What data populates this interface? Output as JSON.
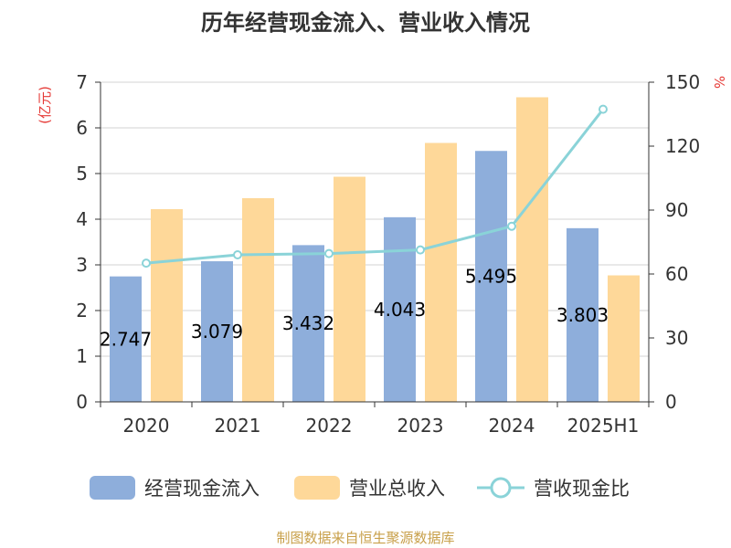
{
  "chart_data": {
    "type": "bar",
    "title": "历年经营现金流入、营业收入情况",
    "categories": [
      "2020",
      "2021",
      "2022",
      "2023",
      "2024",
      "2025H1"
    ],
    "left_unit": "(亿元)",
    "right_unit": "%",
    "ylim_left": [
      0,
      7
    ],
    "yticks_left": [
      "0",
      "1",
      "2",
      "3",
      "4",
      "5",
      "6",
      "7"
    ],
    "ylim_right": [
      0,
      150
    ],
    "yticks_right": [
      "0",
      "30",
      "60",
      "90",
      "120",
      "150"
    ],
    "series": [
      {
        "name": "经营现金流入",
        "type": "bar",
        "axis": "left",
        "color": "#8eaedb",
        "values": [
          2.747,
          3.079,
          3.432,
          4.043,
          5.495,
          3.803
        ],
        "labels": [
          "2.747",
          "3.079",
          "3.432",
          "4.043",
          "5.495",
          "3.803"
        ]
      },
      {
        "name": "营业总收入",
        "type": "bar",
        "axis": "left",
        "color": "#fed899",
        "values": [
          4.22,
          4.46,
          4.93,
          5.67,
          6.67,
          2.77
        ]
      },
      {
        "name": "营收现金比",
        "type": "line",
        "axis": "right",
        "color": "#8ad3d8",
        "values": [
          65.1,
          69.0,
          69.6,
          71.3,
          82.4,
          137.3
        ]
      }
    ],
    "grid": true,
    "legend_position": "bottom"
  },
  "source_text": "制图数据来自恒生聚源数据库"
}
